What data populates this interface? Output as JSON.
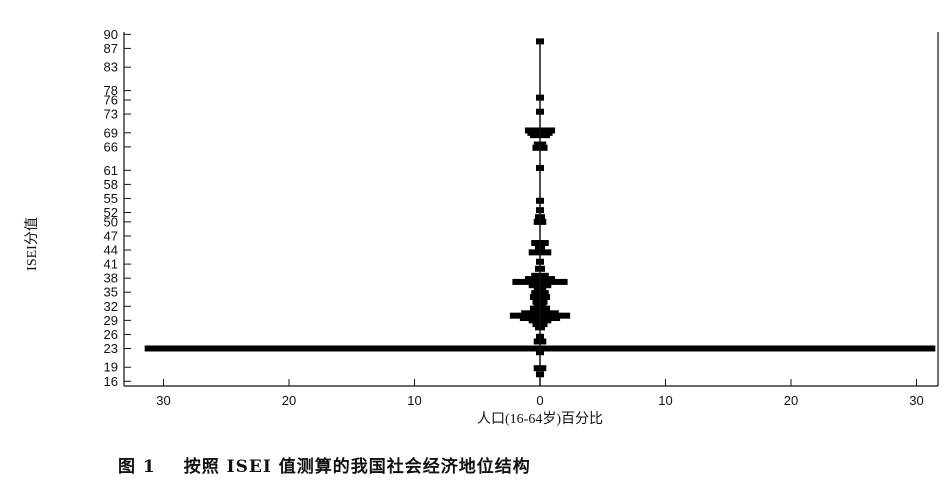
{
  "chart_data": {
    "type": "bar",
    "orientation": "horizontal",
    "style": "population-pyramid",
    "ylabel": "ISEI分值",
    "xlabel": "人口(16-64岁)百分比",
    "y_tick_labels": [
      "16",
      "19",
      "23",
      "26",
      "29",
      "32",
      "35",
      "38",
      "41",
      "44",
      "47",
      "50",
      "52",
      "55",
      "58",
      "61",
      "66",
      "69",
      "73",
      "76",
      "78",
      "83",
      "87",
      "90"
    ],
    "y_ticks": [
      16,
      19,
      23,
      26,
      29,
      32,
      35,
      38,
      41,
      44,
      47,
      50,
      52,
      55,
      58,
      61,
      66,
      69,
      73,
      76,
      78,
      83,
      87,
      90
    ],
    "ylim": [
      15,
      90.5
    ],
    "x_tick_labels": [
      "30",
      "20",
      "10",
      "0",
      "10",
      "20",
      "30"
    ],
    "x_ticks": [
      -30,
      -20,
      -10,
      0,
      10,
      20,
      30
    ],
    "xlim": [
      -33,
      32
    ],
    "grid": false,
    "legend": "none",
    "bars": [
      {
        "isei": 88.5,
        "percent": 0.3
      },
      {
        "isei": 76.5,
        "percent": 0.3
      },
      {
        "isei": 73.5,
        "percent": 0.3
      },
      {
        "isei": 69.5,
        "percent": 1.2
      },
      {
        "isei": 69.0,
        "percent": 1.0
      },
      {
        "isei": 68.5,
        "percent": 0.8
      },
      {
        "isei": 66.5,
        "percent": 0.5
      },
      {
        "isei": 65.8,
        "percent": 0.6
      },
      {
        "isei": 61.5,
        "percent": 0.3
      },
      {
        "isei": 54.5,
        "percent": 0.2
      },
      {
        "isei": 52.5,
        "percent": 0.3
      },
      {
        "isei": 51.0,
        "percent": 0.4
      },
      {
        "isei": 50.0,
        "percent": 0.5
      },
      {
        "isei": 45.5,
        "percent": 0.7
      },
      {
        "isei": 44.5,
        "percent": 0.4
      },
      {
        "isei": 43.5,
        "percent": 0.9
      },
      {
        "isei": 41.5,
        "percent": 0.3
      },
      {
        "isei": 40.0,
        "percent": 0.4
      },
      {
        "isei": 38.5,
        "percent": 0.7
      },
      {
        "isei": 37.8,
        "percent": 1.2
      },
      {
        "isei": 37.2,
        "percent": 2.2
      },
      {
        "isei": 36.5,
        "percent": 0.9
      },
      {
        "isei": 35.5,
        "percent": 0.5
      },
      {
        "isei": 34.8,
        "percent": 0.7
      },
      {
        "isei": 34.0,
        "percent": 0.8
      },
      {
        "isei": 33.0,
        "percent": 0.6
      },
      {
        "isei": 32.5,
        "percent": 0.5
      },
      {
        "isei": 31.5,
        "percent": 0.8
      },
      {
        "isei": 30.5,
        "percent": 1.5
      },
      {
        "isei": 30.0,
        "percent": 2.4
      },
      {
        "isei": 29.5,
        "percent": 1.6
      },
      {
        "isei": 29.0,
        "percent": 0.9
      },
      {
        "isei": 28.2,
        "percent": 0.6
      },
      {
        "isei": 27.5,
        "percent": 0.4
      },
      {
        "isei": 25.5,
        "percent": 0.3
      },
      {
        "isei": 24.5,
        "percent": 0.5
      },
      {
        "isei": 23.0,
        "percent": 31.5
      },
      {
        "isei": 22.2,
        "percent": 0.3
      },
      {
        "isei": 18.8,
        "percent": 0.5
      },
      {
        "isei": 17.5,
        "percent": 0.3
      }
    ]
  },
  "caption": {
    "figure_number": "图 1",
    "text": "按照 ISEI 值测算的我国社会经济地位结构"
  }
}
